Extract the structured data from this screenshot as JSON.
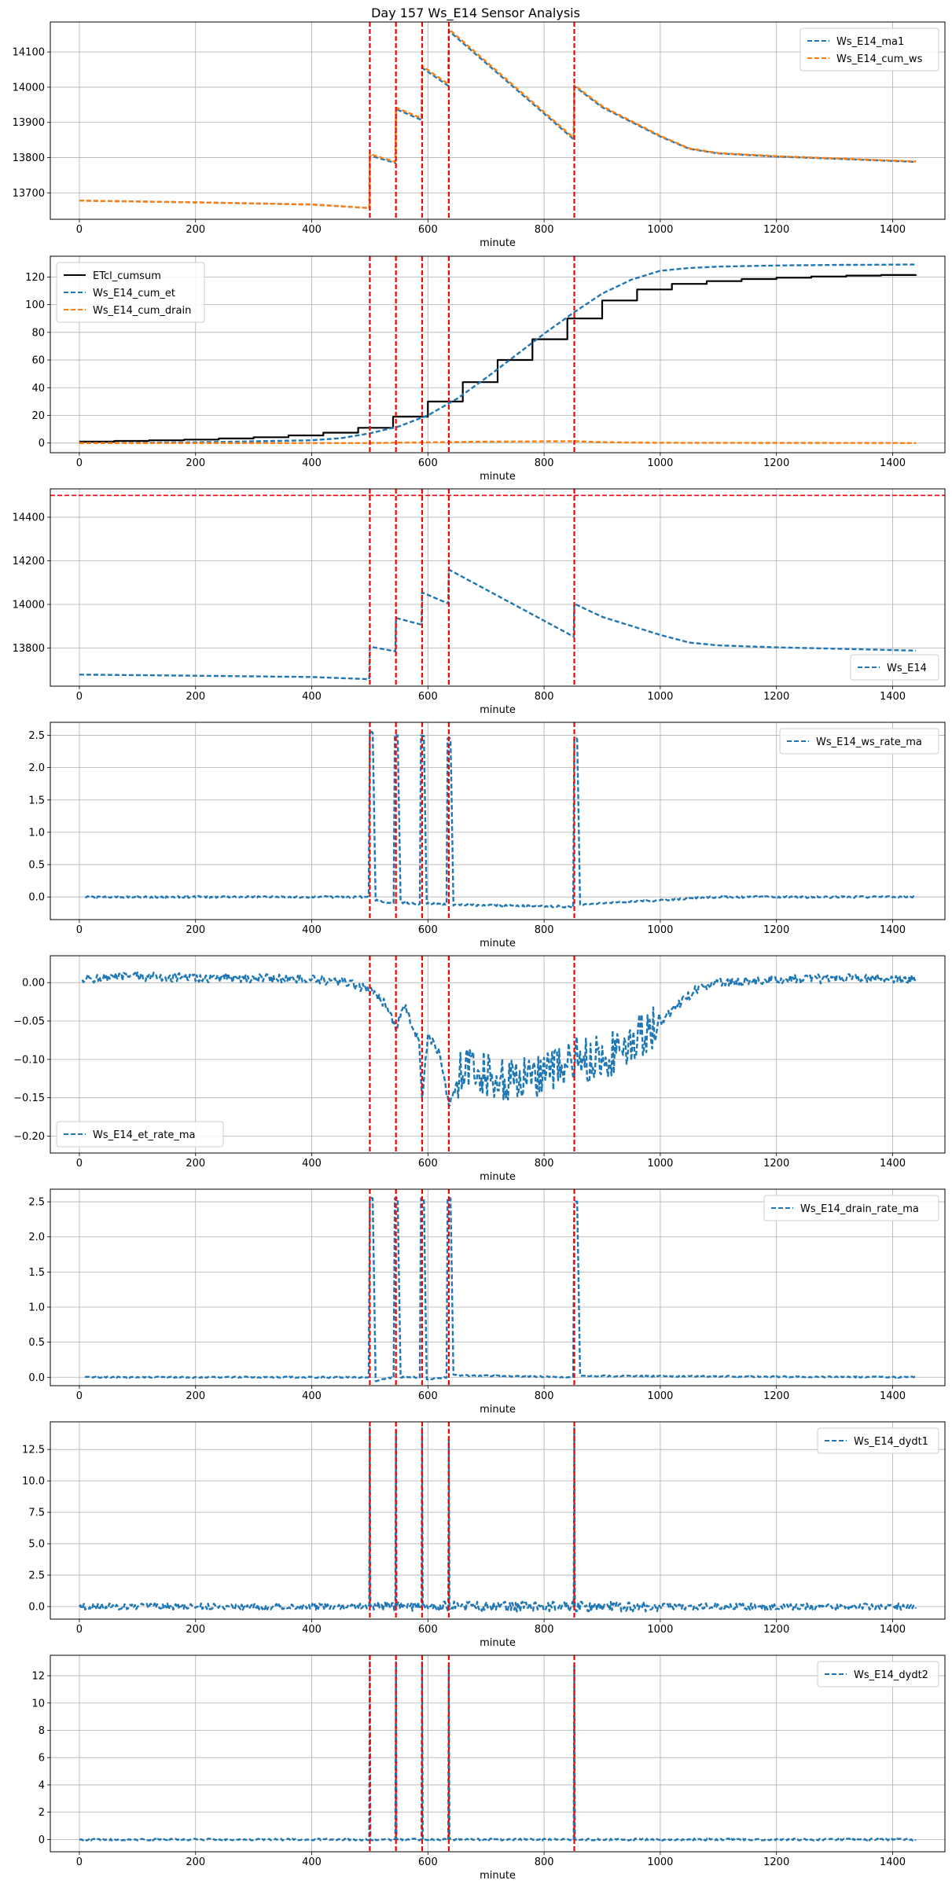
{
  "figure": {
    "title": "Day 157 Ws_E14 Sensor Analysis"
  },
  "colors": {
    "blue": "#1f77b4",
    "orange": "#ff7f0e",
    "black": "#000000",
    "red": "#ff0000",
    "grid": "#b0b0b0"
  },
  "chart_data": [
    {
      "type": "line",
      "xlabel": "minute",
      "ylabel": "",
      "xlim": [
        -50,
        1490
      ],
      "ylim": [
        13625,
        14185
      ],
      "xticks": [
        0,
        200,
        400,
        600,
        800,
        1000,
        1200,
        1400
      ],
      "yticks": [
        13700,
        13800,
        13900,
        14000,
        14100
      ],
      "ytick_format": "int",
      "grid": true,
      "legend": "upper right",
      "vlines": [
        500,
        545,
        590,
        636,
        852
      ],
      "hlines": [],
      "series": [
        {
          "name": "Ws_E14_ma1",
          "color": "#1f77b4",
          "style": "dashed",
          "x": [
            0,
            200,
            400,
            499,
            500,
            544,
            545,
            589,
            590,
            635,
            636,
            851,
            852,
            900,
            1000,
            1050,
            1100,
            1200,
            1300,
            1440
          ],
          "y": [
            13678,
            13673,
            13667,
            13657,
            13806,
            13785,
            13938,
            13907,
            14055,
            14004,
            14160,
            13852,
            14003,
            13943,
            13860,
            13825,
            13812,
            13803,
            13797,
            13788
          ]
        },
        {
          "name": "Ws_E14_cum_ws",
          "color": "#ff7f0e",
          "style": "dashed",
          "x": [
            0,
            200,
            400,
            499,
            500,
            544,
            545,
            589,
            590,
            635,
            636,
            851,
            852,
            900,
            1000,
            1050,
            1100,
            1200,
            1300,
            1440
          ],
          "y": [
            13678,
            13673,
            13667,
            13657,
            13810,
            13788,
            13942,
            13912,
            14060,
            14009,
            14165,
            13856,
            14006,
            13946,
            13862,
            13826,
            13813,
            13804,
            13798,
            13789
          ]
        }
      ]
    },
    {
      "type": "line",
      "xlabel": "minute",
      "ylabel": "",
      "xlim": [
        -50,
        1490
      ],
      "ylim": [
        -7,
        135
      ],
      "xticks": [
        0,
        200,
        400,
        600,
        800,
        1000,
        1200,
        1400
      ],
      "yticks": [
        0,
        20,
        40,
        60,
        80,
        100,
        120
      ],
      "ytick_format": "int",
      "grid": true,
      "legend": "upper left",
      "vlines": [
        500,
        545,
        590,
        636,
        852
      ],
      "hlines": [],
      "series": [
        {
          "name": "ETcl_cumsum",
          "color": "#000000",
          "style": "step",
          "x": [
            0,
            60,
            120,
            180,
            240,
            300,
            360,
            420,
            480,
            540,
            600,
            660,
            720,
            780,
            840,
            900,
            960,
            1020,
            1080,
            1140,
            1200,
            1260,
            1320,
            1380,
            1440
          ],
          "y": [
            1,
            1.5,
            2,
            2.5,
            3.3,
            4.2,
            5.5,
            7.5,
            11,
            19,
            30,
            44,
            60,
            75,
            90,
            103,
            111,
            115,
            117,
            118.5,
            119.5,
            120.3,
            121,
            121.4,
            121.7
          ]
        },
        {
          "name": "Ws_E14_cum_et",
          "color": "#1f77b4",
          "style": "dashed",
          "x": [
            0,
            200,
            400,
            450,
            500,
            550,
            600,
            650,
            700,
            750,
            800,
            850,
            900,
            950,
            1000,
            1050,
            1100,
            1200,
            1300,
            1440
          ],
          "y": [
            0,
            0.5,
            2,
            3.5,
            7,
            12,
            20,
            32,
            47,
            63,
            79,
            94,
            108,
            118,
            124.5,
            126.5,
            127.5,
            128.3,
            128.7,
            129
          ]
        },
        {
          "name": "Ws_E14_cum_drain",
          "color": "#ff7f0e",
          "style": "dashed",
          "x": [
            0,
            500,
            600,
            700,
            852,
            900,
            1000,
            1440
          ],
          "y": [
            0,
            0,
            0.5,
            1,
            1.3,
            0.6,
            0.2,
            0
          ]
        }
      ]
    },
    {
      "type": "line",
      "xlabel": "minute",
      "ylabel": "",
      "xlim": [
        -50,
        1490
      ],
      "ylim": [
        13625,
        14530
      ],
      "xticks": [
        0,
        200,
        400,
        600,
        800,
        1000,
        1200,
        1400
      ],
      "yticks": [
        13800,
        14000,
        14200,
        14400
      ],
      "ytick_format": "int",
      "grid": true,
      "legend": "lower right",
      "vlines": [
        500,
        545,
        590,
        636,
        852
      ],
      "hlines": [
        14500
      ],
      "series": [
        {
          "name": "Ws_E14",
          "color": "#1f77b4",
          "style": "dashed",
          "x": [
            0,
            200,
            400,
            499,
            500,
            544,
            545,
            589,
            590,
            635,
            636,
            851,
            852,
            900,
            1000,
            1050,
            1100,
            1200,
            1300,
            1440
          ],
          "y": [
            13678,
            13673,
            13667,
            13657,
            13806,
            13785,
            13938,
            13907,
            14055,
            14004,
            14160,
            13852,
            14003,
            13943,
            13860,
            13825,
            13812,
            13803,
            13797,
            13788
          ]
        }
      ]
    },
    {
      "type": "line",
      "xlabel": "minute",
      "ylabel": "",
      "xlim": [
        -50,
        1490
      ],
      "ylim": [
        -0.35,
        2.7
      ],
      "xticks": [
        0,
        200,
        400,
        600,
        800,
        1000,
        1200,
        1400
      ],
      "yticks": [
        0.0,
        0.5,
        1.0,
        1.5,
        2.0,
        2.5
      ],
      "ytick_format": "1",
      "grid": true,
      "legend": "upper right",
      "vlines": [
        500,
        545,
        590,
        636,
        852
      ],
      "hlines": [],
      "series": [
        {
          "name": "Ws_E14_ws_rate_ma",
          "color": "#1f77b4",
          "style": "dashed",
          "x": [
            10,
            498,
            500,
            505,
            510,
            541,
            543,
            548,
            553,
            586,
            588,
            593,
            598,
            632,
            634,
            639,
            644,
            850,
            852,
            857,
            862,
            900,
            1000,
            1050,
            1100,
            1440
          ],
          "y": [
            0,
            0,
            2.55,
            2.55,
            -0.05,
            -0.1,
            2.5,
            2.5,
            -0.08,
            -0.12,
            2.5,
            2.5,
            -0.1,
            -0.12,
            2.45,
            2.45,
            -0.12,
            -0.15,
            2.45,
            2.45,
            -0.12,
            -0.1,
            -0.05,
            -0.02,
            0,
            0
          ]
        }
      ]
    },
    {
      "type": "line",
      "xlabel": "minute",
      "ylabel": "",
      "xlim": [
        -50,
        1490
      ],
      "ylim": [
        -0.222,
        0.035
      ],
      "xticks": [
        0,
        200,
        400,
        600,
        800,
        1000,
        1200,
        1400
      ],
      "yticks": [
        -0.2,
        -0.15,
        -0.1,
        -0.05,
        0.0
      ],
      "ytick_format": "2",
      "grid": true,
      "legend": "lower left",
      "vlines": [
        500,
        545,
        590,
        636,
        852
      ],
      "hlines": [],
      "series": [
        {
          "name": "Ws_E14_et_rate_ma",
          "color": "#1f77b4",
          "style": "dashed",
          "x": [
            5,
            100,
            200,
            300,
            400,
            460,
            500,
            530,
            545,
            560,
            585,
            590,
            600,
            620,
            636,
            660,
            700,
            750,
            800,
            852,
            880,
            920,
            960,
            1000,
            1030,
            1060,
            1100,
            1200,
            1300,
            1440
          ],
          "y": [
            0.005,
            0.008,
            0.006,
            0.006,
            0.004,
            0.0,
            -0.01,
            -0.03,
            -0.06,
            -0.03,
            -0.08,
            -0.15,
            -0.07,
            -0.09,
            -0.16,
            -0.11,
            -0.12,
            -0.13,
            -0.12,
            -0.1,
            -0.1,
            -0.09,
            -0.07,
            -0.05,
            -0.03,
            -0.01,
            0.0,
            0.004,
            0.005,
            0.005
          ]
        }
      ]
    },
    {
      "type": "line",
      "xlabel": "minute",
      "ylabel": "",
      "xlim": [
        -50,
        1490
      ],
      "ylim": [
        -0.12,
        2.68
      ],
      "xticks": [
        0,
        200,
        400,
        600,
        800,
        1000,
        1200,
        1400
      ],
      "yticks": [
        0.0,
        0.5,
        1.0,
        1.5,
        2.0,
        2.5
      ],
      "ytick_format": "1",
      "grid": true,
      "legend": "upper right",
      "vlines": [
        500,
        545,
        590,
        636,
        852
      ],
      "hlines": [],
      "series": [
        {
          "name": "Ws_E14_drain_rate_ma",
          "color": "#1f77b4",
          "style": "dashed",
          "x": [
            10,
            498,
            500,
            505,
            510,
            541,
            543,
            548,
            553,
            586,
            588,
            593,
            598,
            632,
            634,
            639,
            644,
            850,
            852,
            857,
            862,
            1440
          ],
          "y": [
            0,
            0,
            2.55,
            2.55,
            -0.05,
            0,
            2.55,
            2.55,
            0,
            0,
            2.55,
            2.55,
            -0.03,
            0,
            2.55,
            2.55,
            0.03,
            0,
            2.5,
            2.5,
            0.02,
            0
          ]
        }
      ]
    },
    {
      "type": "line",
      "xlabel": "minute",
      "ylabel": "",
      "xlim": [
        -50,
        1490
      ],
      "ylim": [
        -1.0,
        14.7
      ],
      "xticks": [
        0,
        200,
        400,
        600,
        800,
        1000,
        1200,
        1400
      ],
      "yticks": [
        0.0,
        2.5,
        5.0,
        7.5,
        10.0,
        12.5
      ],
      "ytick_format": "1",
      "grid": true,
      "legend": "upper right",
      "vlines": [
        500,
        545,
        590,
        636,
        852
      ],
      "hlines": [],
      "series": [
        {
          "name": "Ws_E14_dydt1",
          "color": "#1f77b4",
          "style": "dashed",
          "x": [
            0,
            499,
            500,
            501,
            544,
            545,
            546,
            589,
            590,
            591,
            635,
            636,
            637,
            851,
            852,
            853,
            1440
          ],
          "y": [
            0,
            0,
            14.2,
            0,
            0,
            14,
            0,
            0,
            14.2,
            0,
            0,
            13.3,
            0,
            0,
            14.2,
            0,
            0
          ]
        }
      ]
    },
    {
      "type": "line",
      "xlabel": "minute",
      "ylabel": "",
      "xlim": [
        -50,
        1490
      ],
      "ylim": [
        -0.9,
        13.5
      ],
      "xticks": [
        0,
        200,
        400,
        600,
        800,
        1000,
        1200,
        1400
      ],
      "yticks": [
        0,
        2,
        4,
        6,
        8,
        10,
        12
      ],
      "ytick_format": "int",
      "grid": true,
      "legend": "upper right",
      "vlines": [
        500,
        545,
        590,
        636,
        852
      ],
      "hlines": [],
      "series": [
        {
          "name": "Ws_E14_dydt2",
          "color": "#1f77b4",
          "style": "dashed",
          "x": [
            0,
            499,
            500,
            501,
            544,
            545,
            546,
            589,
            590,
            591,
            635,
            636,
            637,
            851,
            852,
            853,
            1440
          ],
          "y": [
            0,
            0,
            13.1,
            0,
            0,
            13.0,
            0,
            0,
            13.0,
            0,
            0,
            12.8,
            0,
            0,
            12.8,
            0,
            0
          ]
        }
      ]
    }
  ]
}
